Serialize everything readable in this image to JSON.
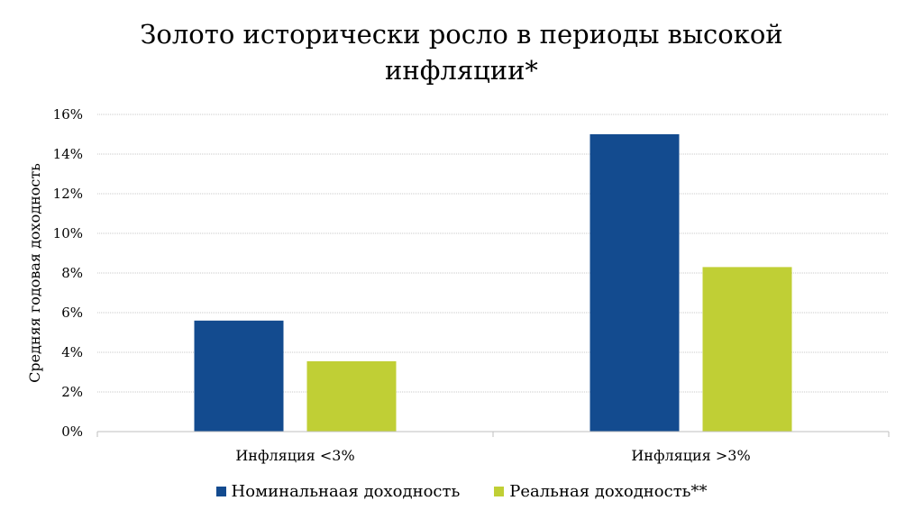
{
  "chart_data": {
    "type": "bar",
    "title_lines": [
      "Золото исторически росло в периоды высокой",
      "инфляции*"
    ],
    "ylabel": "Средняя годовая доходность",
    "xlabel": "",
    "categories": [
      "Инфляция <3%",
      "Инфляция >3%"
    ],
    "series": [
      {
        "name": "Номинальнаая доходность",
        "values": [
          5.6,
          15.0
        ],
        "color": "#134b8f"
      },
      {
        "name": "Реальная доходность**",
        "values": [
          3.55,
          8.3
        ],
        "color": "#c0cf35"
      }
    ],
    "ylim": [
      0,
      16
    ],
    "yticks": [
      0,
      2,
      4,
      6,
      8,
      10,
      12,
      14,
      16
    ],
    "ytick_format": "%",
    "grid": true,
    "legend_position": "bottom"
  }
}
